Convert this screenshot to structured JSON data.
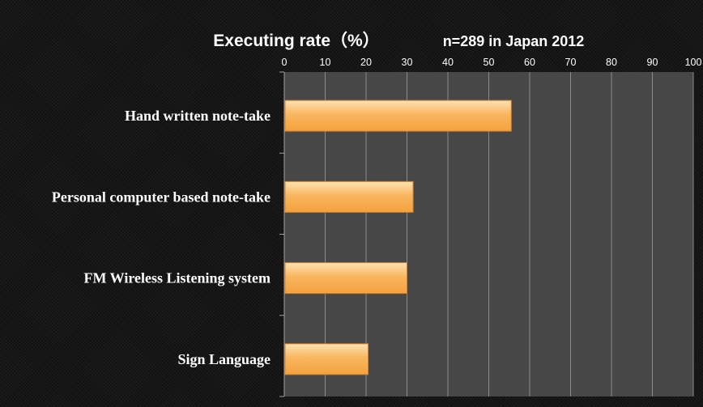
{
  "chart_data": {
    "type": "bar",
    "orientation": "horizontal",
    "title": "Executing rate（%）",
    "subtitle": "n=289   in Japan 2012",
    "categories": [
      "Hand written note-take",
      "Personal computer based note-take",
      "FM Wireless Listening system",
      "Sign Language"
    ],
    "values": [
      55.5,
      31.5,
      30,
      20.5
    ],
    "xlim": [
      0,
      100
    ],
    "xticks": [
      0,
      10,
      20,
      30,
      40,
      50,
      60,
      70,
      80,
      90,
      100
    ],
    "axis_position": "top",
    "grid": true,
    "colors": {
      "plot_background": "#474747",
      "gridline": "#8a8a8a",
      "bar_light": "#fde2b5",
      "bar_mid": "#f9b65f",
      "bar_dark": "#f4a23e",
      "bar_border": "#d4822a",
      "text": "#ffffff"
    }
  }
}
